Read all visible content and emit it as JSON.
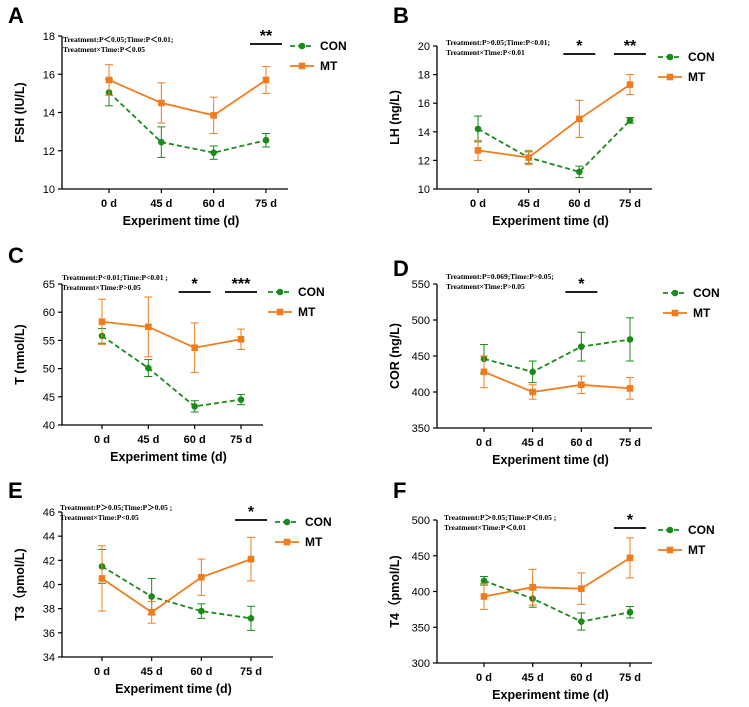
{
  "colors": {
    "con": "#1a8a1a",
    "mt": "#f07c1e",
    "axis": "#000000"
  },
  "chart_data": [
    {
      "type": "line",
      "panel": "A",
      "stat_lines": [
        "Treatment:P＜0.05;Time:P＜0.01;",
        "Treatment×Time:P＜0.05"
      ],
      "categories": [
        "0 d",
        "45 d",
        "60 d",
        "75 d"
      ],
      "xlabel": "Experiment time (d)",
      "ylabel": "FSH (IU/L)",
      "ylim": [
        10,
        18
      ],
      "yticks": [
        "10",
        "12",
        "14",
        "16",
        "18"
      ],
      "series": [
        {
          "name": "CON",
          "values": [
            15.05,
            12.45,
            11.9,
            12.55
          ],
          "err": [
            0.7,
            0.8,
            0.35,
            0.35
          ]
        },
        {
          "name": "MT",
          "values": [
            15.7,
            14.5,
            13.85,
            15.7
          ],
          "err": [
            0.8,
            1.05,
            0.95,
            0.7
          ]
        }
      ],
      "significance": [
        {
          "index": 3,
          "label": "**"
        }
      ]
    },
    {
      "type": "line",
      "panel": "B",
      "stat_lines": [
        "Treatment:P>0.05;Time:P<0.01;",
        "Treatment×Time:P<0.01"
      ],
      "categories": [
        "0 d",
        "45 d",
        "60 d",
        "75 d"
      ],
      "xlabel": "Experiment time (d)",
      "ylabel": "LH (ng/L)",
      "ylim": [
        10,
        20
      ],
      "yticks": [
        "10",
        "12",
        "14",
        "16",
        "18",
        "20"
      ],
      "series": [
        {
          "name": "CON",
          "values": [
            14.2,
            12.2,
            11.2,
            14.8
          ],
          "err": [
            0.9,
            0.4,
            0.4,
            0.2
          ]
        },
        {
          "name": "MT",
          "values": [
            12.7,
            12.2,
            14.9,
            17.3
          ],
          "err": [
            0.7,
            0.5,
            1.3,
            0.7
          ]
        }
      ],
      "significance": [
        {
          "index": 2,
          "label": "*"
        },
        {
          "index": 3,
          "label": "**"
        }
      ]
    },
    {
      "type": "line",
      "panel": "C",
      "stat_lines": [
        "Treatment:P<0.01;Time:P<0.01 ;",
        "Treatment×Time:P>0.05"
      ],
      "categories": [
        "0 d",
        "45 d",
        "60 d",
        "75 d"
      ],
      "xlabel": "Experiment time (d)",
      "ylabel": "T (nmol/L)",
      "ylim": [
        40,
        65
      ],
      "yticks": [
        "40",
        "45",
        "50",
        "55",
        "60",
        "65"
      ],
      "series": [
        {
          "name": "CON",
          "values": [
            55.8,
            50.1,
            43.3,
            44.5
          ],
          "err": [
            1.3,
            1.5,
            1.0,
            0.9
          ]
        },
        {
          "name": "MT",
          "values": [
            58.3,
            57.4,
            53.7,
            55.2
          ],
          "err": [
            4.0,
            5.3,
            4.4,
            1.8
          ]
        }
      ],
      "significance": [
        {
          "index": 2,
          "label": "*"
        },
        {
          "index": 3,
          "label": "***"
        }
      ]
    },
    {
      "type": "line",
      "panel": "D",
      "stat_lines": [
        "Treatment:P=0.069;Time:P>0.05;",
        "Treatment×Time:P>0.05"
      ],
      "categories": [
        "0 d",
        "45 d",
        "60 d",
        "75 d"
      ],
      "xlabel": "Experiment time (d)",
      "ylabel": "COR (ng/L)",
      "ylim": [
        350,
        550
      ],
      "yticks": [
        "350",
        "400",
        "450",
        "500",
        "550"
      ],
      "series": [
        {
          "name": "CON",
          "values": [
            446,
            428,
            463,
            473
          ],
          "err": [
            20,
            15,
            20,
            30
          ]
        },
        {
          "name": "MT",
          "values": [
            428,
            400,
            410,
            405
          ],
          "err": [
            22,
            10,
            12,
            15
          ]
        }
      ],
      "significance": [
        {
          "index": 2,
          "label": "*"
        }
      ]
    },
    {
      "type": "line",
      "panel": "E",
      "stat_lines": [
        "Treatment:P＞0.05;Time:P＞0.05 ;",
        "Treatment×Time:P<0.05"
      ],
      "categories": [
        "0 d",
        "45 d",
        "60 d",
        "75 d"
      ],
      "xlabel": "Experiment time (d)",
      "ylabel": "T3（pmol/L)",
      "ylim": [
        34,
        46
      ],
      "yticks": [
        "34",
        "36",
        "38",
        "40",
        "42",
        "44",
        "46"
      ],
      "series": [
        {
          "name": "CON",
          "values": [
            41.5,
            39.0,
            37.8,
            37.2
          ],
          "err": [
            1.4,
            1.5,
            0.6,
            1.0
          ]
        },
        {
          "name": "MT",
          "values": [
            40.5,
            37.7,
            40.6,
            42.1
          ],
          "err": [
            2.7,
            0.9,
            1.5,
            1.8
          ]
        }
      ],
      "significance": [
        {
          "index": 3,
          "label": "*"
        }
      ]
    },
    {
      "type": "line",
      "panel": "F",
      "stat_lines": [
        "Treatment:P＞0.05;Time:P＜0.05 ;",
        "Treatment×Time:P＜0.01"
      ],
      "categories": [
        "0 d",
        "45 d",
        "60 d",
        "75 d"
      ],
      "xlabel": "Experiment time (d)",
      "ylabel": "T4（pmol/L)",
      "ylim": [
        300,
        500
      ],
      "yticks": [
        "300",
        "350",
        "400",
        "450",
        "500"
      ],
      "series": [
        {
          "name": "CON",
          "values": [
            415,
            390,
            358,
            371
          ],
          "err": [
            6,
            12,
            12,
            8
          ]
        },
        {
          "name": "MT",
          "values": [
            393,
            406,
            404,
            447
          ],
          "err": [
            18,
            25,
            22,
            28
          ]
        }
      ],
      "significance": [
        {
          "index": 3,
          "label": "*"
        }
      ]
    }
  ]
}
